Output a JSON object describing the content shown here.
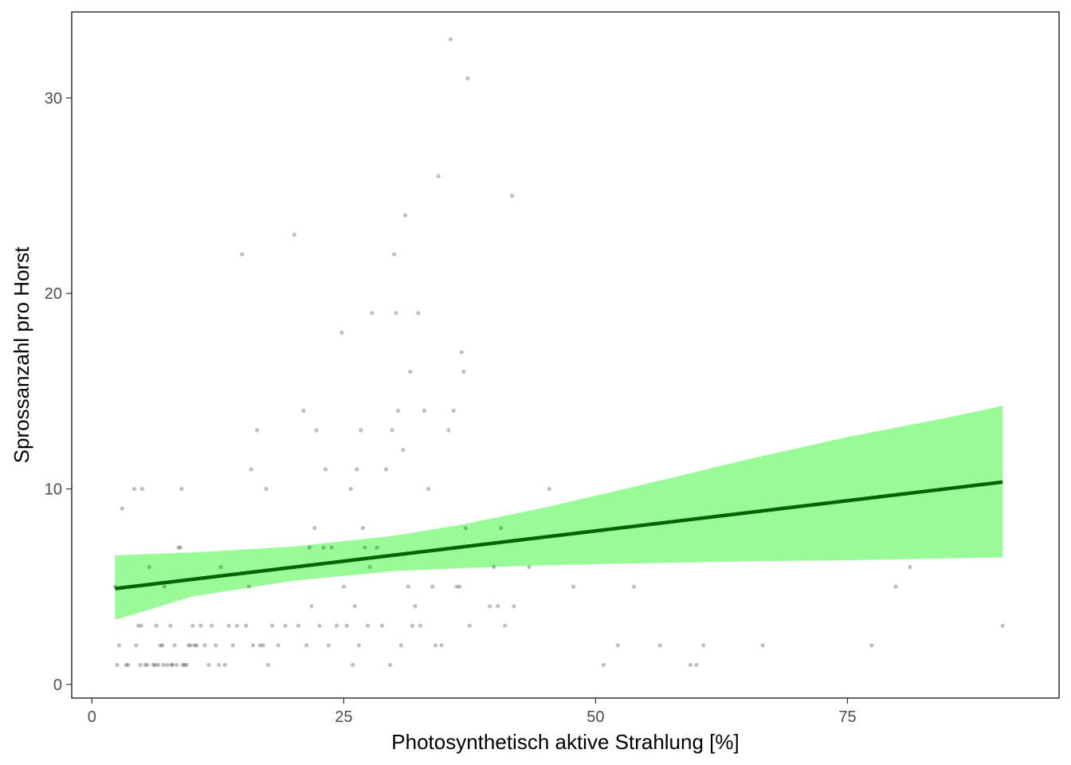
{
  "chart_data": {
    "type": "scatter",
    "title": "",
    "xlabel": "Photosynthetisch aktive Strahlung [%]",
    "ylabel": "Sprossanzahl pro Horst",
    "xlim": [
      -2,
      96
    ],
    "ylim": [
      -0.7,
      34.4
    ],
    "x_ticks": [
      0,
      25,
      50,
      75
    ],
    "y_ticks": [
      0,
      10,
      20,
      30
    ],
    "grid": false,
    "legend": "none",
    "colors": {
      "points": "#000000",
      "points_opacity": 0.25,
      "fit_line": "#006400",
      "ribbon": "#98FB98",
      "axis_text": "#4d4d4d",
      "panel_border": "#000000"
    },
    "points": [
      [
        2.3,
        5
      ],
      [
        2.5,
        1
      ],
      [
        2.7,
        2
      ],
      [
        3.0,
        9
      ],
      [
        3.4,
        1
      ],
      [
        3.6,
        1
      ],
      [
        4.2,
        10
      ],
      [
        4.4,
        2
      ],
      [
        4.6,
        3
      ],
      [
        4.8,
        1
      ],
      [
        4.9,
        3
      ],
      [
        5.0,
        10
      ],
      [
        5.3,
        1
      ],
      [
        5.5,
        1
      ],
      [
        5.7,
        6
      ],
      [
        6.1,
        1
      ],
      [
        6.3,
        1
      ],
      [
        6.4,
        3
      ],
      [
        6.6,
        1
      ],
      [
        6.8,
        2
      ],
      [
        7.0,
        2
      ],
      [
        7.1,
        1
      ],
      [
        7.2,
        5
      ],
      [
        7.5,
        1
      ],
      [
        7.8,
        3
      ],
      [
        7.9,
        1
      ],
      [
        8.0,
        1
      ],
      [
        8.2,
        2
      ],
      [
        8.4,
        1
      ],
      [
        8.6,
        7
      ],
      [
        8.8,
        7
      ],
      [
        8.9,
        10
      ],
      [
        9.0,
        1
      ],
      [
        9.2,
        1
      ],
      [
        9.4,
        1
      ],
      [
        9.6,
        2
      ],
      [
        9.8,
        2
      ],
      [
        10.0,
        3
      ],
      [
        10.2,
        2
      ],
      [
        10.4,
        2
      ],
      [
        10.8,
        3
      ],
      [
        11.2,
        2
      ],
      [
        11.6,
        1
      ],
      [
        11.9,
        3
      ],
      [
        12.3,
        2
      ],
      [
        12.6,
        1
      ],
      [
        12.8,
        6
      ],
      [
        13.2,
        1
      ],
      [
        13.6,
        3
      ],
      [
        14.0,
        2
      ],
      [
        14.4,
        3
      ],
      [
        14.9,
        22
      ],
      [
        15.3,
        3
      ],
      [
        15.6,
        5
      ],
      [
        15.8,
        11
      ],
      [
        16.0,
        2
      ],
      [
        16.4,
        13
      ],
      [
        16.7,
        2
      ],
      [
        17.0,
        2
      ],
      [
        17.3,
        10
      ],
      [
        17.5,
        1
      ],
      [
        17.9,
        3
      ],
      [
        18.5,
        2
      ],
      [
        19.2,
        3
      ],
      [
        20.1,
        23
      ],
      [
        20.5,
        3
      ],
      [
        21.0,
        14
      ],
      [
        21.3,
        2
      ],
      [
        21.6,
        7
      ],
      [
        21.8,
        4
      ],
      [
        22.1,
        8
      ],
      [
        22.3,
        13
      ],
      [
        22.6,
        3
      ],
      [
        23.0,
        7
      ],
      [
        23.2,
        11
      ],
      [
        23.5,
        2
      ],
      [
        23.8,
        7
      ],
      [
        24.3,
        3
      ],
      [
        24.8,
        18
      ],
      [
        25.0,
        5
      ],
      [
        25.3,
        3
      ],
      [
        25.7,
        10
      ],
      [
        25.9,
        1
      ],
      [
        26.1,
        4
      ],
      [
        26.3,
        11
      ],
      [
        26.5,
        2
      ],
      [
        26.7,
        13
      ],
      [
        26.9,
        8
      ],
      [
        27.1,
        7
      ],
      [
        27.4,
        3
      ],
      [
        27.6,
        6
      ],
      [
        27.8,
        19
      ],
      [
        28.3,
        7
      ],
      [
        28.8,
        3
      ],
      [
        29.2,
        11
      ],
      [
        29.6,
        1
      ],
      [
        29.8,
        13
      ],
      [
        30.0,
        22
      ],
      [
        30.2,
        19
      ],
      [
        30.4,
        14
      ],
      [
        30.7,
        2
      ],
      [
        30.9,
        12
      ],
      [
        31.1,
        24
      ],
      [
        31.4,
        5
      ],
      [
        31.6,
        16
      ],
      [
        31.8,
        3
      ],
      [
        32.1,
        4
      ],
      [
        32.4,
        19
      ],
      [
        32.6,
        3
      ],
      [
        33.0,
        14
      ],
      [
        33.4,
        10
      ],
      [
        33.8,
        5
      ],
      [
        34.1,
        2
      ],
      [
        34.4,
        26
      ],
      [
        34.7,
        2
      ],
      [
        35.4,
        13
      ],
      [
        35.6,
        33
      ],
      [
        35.9,
        14
      ],
      [
        36.2,
        5
      ],
      [
        36.5,
        5
      ],
      [
        36.7,
        17
      ],
      [
        36.9,
        16
      ],
      [
        37.1,
        8
      ],
      [
        37.3,
        31
      ],
      [
        37.5,
        3
      ],
      [
        39.5,
        4
      ],
      [
        39.9,
        6
      ],
      [
        40.3,
        4
      ],
      [
        40.6,
        8
      ],
      [
        41.0,
        3
      ],
      [
        41.7,
        25
      ],
      [
        41.9,
        4
      ],
      [
        43.4,
        6
      ],
      [
        45.4,
        10
      ],
      [
        47.8,
        5
      ],
      [
        50.8,
        1
      ],
      [
        52.2,
        2
      ],
      [
        53.8,
        5
      ],
      [
        56.4,
        2
      ],
      [
        59.4,
        1
      ],
      [
        60.0,
        1
      ],
      [
        60.7,
        2
      ],
      [
        66.6,
        2
      ],
      [
        77.4,
        2
      ],
      [
        79.8,
        5
      ],
      [
        81.2,
        6
      ],
      [
        90.4,
        3
      ]
    ],
    "fit_line": {
      "x": [
        2.3,
        90.4
      ],
      "y": [
        4.9,
        10.35
      ]
    },
    "confidence_band": {
      "x": [
        2.3,
        10,
        20,
        30,
        37,
        45,
        55,
        65,
        75,
        85,
        90.4
      ],
      "lower": [
        3.3,
        4.5,
        5.3,
        5.8,
        5.95,
        6.1,
        6.2,
        6.3,
        6.35,
        6.45,
        6.5
      ],
      "upper": [
        6.6,
        6.75,
        7.05,
        7.6,
        8.2,
        9.05,
        10.25,
        11.5,
        12.65,
        13.65,
        14.25
      ]
    }
  }
}
